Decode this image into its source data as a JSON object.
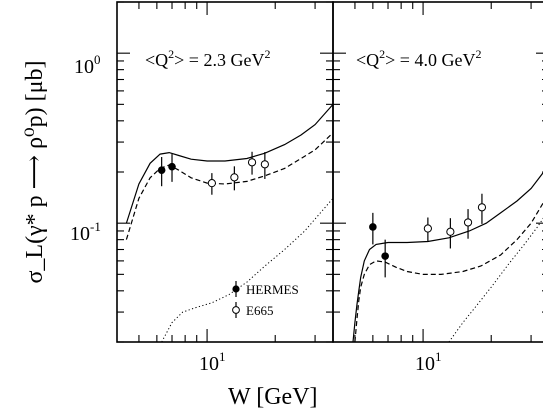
{
  "chart_data": [
    {
      "type": "line",
      "panel_label": "<Q²> = 2.3 GeV²",
      "label_main": "<Q",
      "label_sup1": "2",
      "label_mid": "> = 2.3 GeV",
      "label_sup2": "2",
      "xlim": [
        4.0,
        36.0
      ],
      "ylim": [
        0.02,
        2.0
      ],
      "x_scale": "log",
      "y_scale": "log",
      "series": [
        {
          "name": "HERMES",
          "style": "filled-circle",
          "points": [
            {
              "x": 6.3,
              "y": 0.205,
              "err": 0.04
            },
            {
              "x": 7.0,
              "y": 0.215,
              "err": 0.04
            }
          ]
        },
        {
          "name": "E665",
          "style": "open-circle",
          "points": [
            {
              "x": 10.5,
              "y": 0.172,
              "err": 0.025
            },
            {
              "x": 13.2,
              "y": 0.186,
              "err": 0.03
            },
            {
              "x": 15.8,
              "y": 0.228,
              "err": 0.035
            },
            {
              "x": 18.0,
              "y": 0.222,
              "err": 0.04
            }
          ]
        },
        {
          "style": "solid",
          "x": [
            4.4,
            5.0,
            5.6,
            6.2,
            6.8,
            7.5,
            8.5,
            10,
            12,
            15,
            18,
            22,
            26,
            30,
            36
          ],
          "y": [
            0.1,
            0.17,
            0.225,
            0.255,
            0.26,
            0.25,
            0.238,
            0.232,
            0.232,
            0.24,
            0.258,
            0.29,
            0.33,
            0.38,
            0.5
          ]
        },
        {
          "style": "dashed",
          "x": [
            4.4,
            5.0,
            5.6,
            6.2,
            6.8,
            7.5,
            8.5,
            10,
            12,
            15,
            18,
            22,
            26,
            30,
            36
          ],
          "y": [
            0.08,
            0.14,
            0.185,
            0.21,
            0.22,
            0.205,
            0.185,
            0.172,
            0.17,
            0.176,
            0.19,
            0.21,
            0.24,
            0.27,
            0.34
          ]
        },
        {
          "style": "dotted",
          "x": [
            6.3,
            7.0,
            7.8,
            9,
            10.5,
            12.5,
            15,
            18,
            22,
            27,
            36
          ],
          "y": [
            0.02,
            0.026,
            0.03,
            0.032,
            0.034,
            0.038,
            0.045,
            0.056,
            0.07,
            0.09,
            0.14
          ]
        }
      ]
    },
    {
      "type": "line",
      "panel_label": "<Q²> = 4.0 GeV²",
      "label_main": "<Q",
      "label_sup1": "2",
      "label_mid": "> = 4.0 GeV",
      "label_sup2": "2",
      "xlim": [
        4.0,
        36.0
      ],
      "ylim": [
        0.02,
        2.0
      ],
      "x_scale": "log",
      "y_scale": "log",
      "series": [
        {
          "name": "HERMES",
          "style": "filled-circle",
          "points": [
            {
              "x": 6.0,
              "y": 0.095,
              "err": 0.02
            },
            {
              "x": 6.8,
              "y": 0.064,
              "err": 0.016
            }
          ]
        },
        {
          "name": "E665",
          "style": "open-circle",
          "points": [
            {
              "x": 10.5,
              "y": 0.093,
              "err": 0.015
            },
            {
              "x": 13.2,
              "y": 0.089,
              "err": 0.018
            },
            {
              "x": 15.8,
              "y": 0.101,
              "err": 0.02
            },
            {
              "x": 18.2,
              "y": 0.124,
              "err": 0.025
            }
          ]
        },
        {
          "style": "solid",
          "x": [
            4.9,
            5.0,
            5.1,
            5.2,
            5.3,
            5.5,
            5.8,
            6.2,
            7.0,
            8.5,
            10.5,
            13,
            16,
            19,
            22,
            26,
            30,
            36
          ],
          "y": [
            0.02,
            0.026,
            0.033,
            0.04,
            0.048,
            0.06,
            0.07,
            0.075,
            0.077,
            0.077,
            0.078,
            0.082,
            0.09,
            0.1,
            0.115,
            0.135,
            0.16,
            0.22
          ]
        },
        {
          "style": "dashed",
          "x": [
            5.0,
            5.1,
            5.2,
            5.3,
            5.5,
            5.8,
            6.2,
            6.8,
            7.6,
            8.5,
            10,
            12,
            15,
            18,
            22,
            26,
            30,
            36
          ],
          "y": [
            0.02,
            0.027,
            0.035,
            0.042,
            0.05,
            0.057,
            0.06,
            0.059,
            0.055,
            0.052,
            0.05,
            0.05,
            0.052,
            0.056,
            0.065,
            0.08,
            0.1,
            0.15
          ]
        },
        {
          "style": "dotted",
          "x": [
            13.0,
            15,
            17,
            20,
            24,
            28,
            32,
            36
          ],
          "y": [
            0.02,
            0.026,
            0.032,
            0.042,
            0.058,
            0.075,
            0.095,
            0.12
          ]
        }
      ]
    }
  ],
  "y_tick_labels": [
    {
      "value": 1.0,
      "base": "10",
      "exp": "0"
    },
    {
      "value": 0.1,
      "base": "10",
      "exp": "-1"
    }
  ],
  "x_tick_label": {
    "value": 10.0,
    "base": "10",
    "exp": "1"
  },
  "xlabel": "W [GeV]",
  "ylabel": "σ_L(γ* p ⟶ ρ⁰p) [μb]",
  "legend": {
    "hermes": "HERMES",
    "e665": "E665"
  }
}
